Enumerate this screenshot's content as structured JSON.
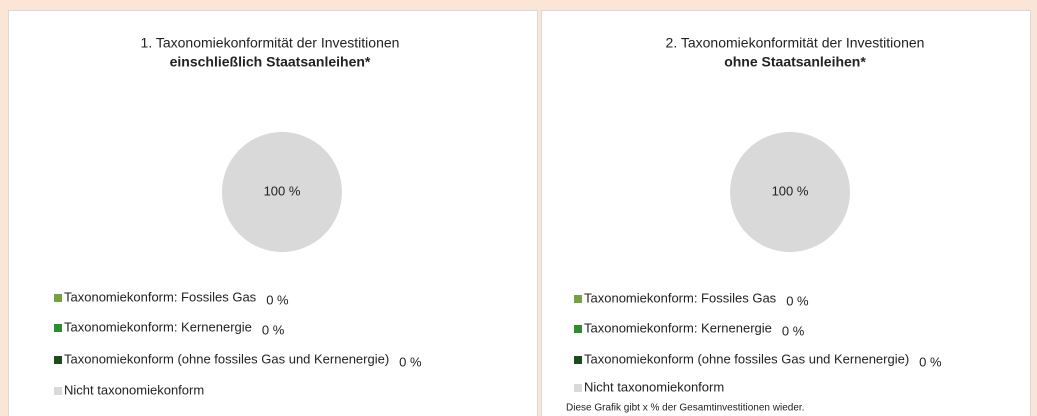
{
  "chart_data": [
    {
      "type": "pie",
      "title": "1. Taxonomiekonformität der Investitionen",
      "subtitle": "einschließlich Staatsanleihen*",
      "categories": [
        "Taxonomiekonform: Fossiles Gas",
        "Taxonomiekonform: Kernenergie",
        "Taxonomiekonform (ohne fossiles Gas und Kernenergie)",
        "Nicht taxonomiekonform"
      ],
      "values": [
        0,
        0,
        0,
        100
      ],
      "value_labels": [
        "0 %",
        "0 %",
        "0 %",
        "100 %"
      ],
      "colors": [
        "#77a043",
        "#2e8b2e",
        "#1d4d1d",
        "#d9d9d9"
      ]
    },
    {
      "type": "pie",
      "title": "2. Taxonomiekonformität der Investitionen",
      "subtitle": "ohne Staatsanleihen*",
      "categories": [
        "Taxonomiekonform: Fossiles Gas",
        "Taxonomiekonform: Kernenergie",
        "Taxonomiekonform (ohne fossiles Gas und Kernenergie)",
        "Nicht taxonomiekonform"
      ],
      "values": [
        0,
        0,
        0,
        100
      ],
      "value_labels": [
        "0 %",
        "0 %",
        "0 %",
        "100 %"
      ],
      "colors": [
        "#77a043",
        "#2e8b2e",
        "#1d4d1d",
        "#d9d9d9"
      ],
      "note": "Diese Grafik gibt x % der Gesamtinvestitionen wieder."
    }
  ]
}
